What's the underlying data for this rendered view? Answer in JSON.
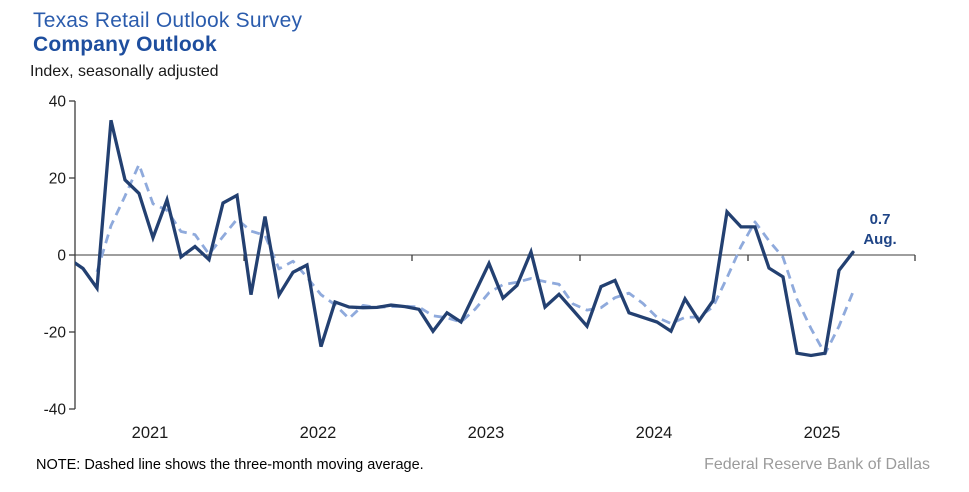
{
  "header": {
    "survey_title": "Texas Retail Outlook Survey",
    "chart_title": "Company Outlook",
    "subtitle": "Index,  seasonally adjusted"
  },
  "annotation": {
    "value": "0.7",
    "month": "Aug."
  },
  "note": "NOTE: Dashed line shows the three-month moving average.",
  "footer": "Federal Reserve Bank of Dallas",
  "colors": {
    "survey_title": "#2B5CAD",
    "chart_title": "#1E4E9E",
    "solid_line": "#234071",
    "dashed_line": "#8FAADC",
    "annotation": "#1E4486",
    "axis": "#3d3d3d",
    "tick_label": "#1a1a1a"
  },
  "chart_data": {
    "type": "line",
    "title": "Company Outlook",
    "subtitle": "Texas Retail Outlook Survey",
    "ylabel": "Index, seasonally adjusted",
    "ylim": [
      -40,
      40
    ],
    "y_ticks": [
      40,
      20,
      0,
      -20,
      -40
    ],
    "x_tick_years": [
      "2021",
      "2022",
      "2023",
      "2024",
      "2025"
    ],
    "grid": false,
    "zero_line": true,
    "legend_position": "none (dashed line identified in footnote)",
    "last_point_label": "0.7 Aug.",
    "x": [
      "2020-12",
      "2021-01",
      "2021-02",
      "2021-03",
      "2021-04",
      "2021-05",
      "2021-06",
      "2021-07",
      "2021-08",
      "2021-09",
      "2021-10",
      "2021-11",
      "2021-12",
      "2022-01",
      "2022-02",
      "2022-03",
      "2022-04",
      "2022-05",
      "2022-06",
      "2022-07",
      "2022-08",
      "2022-09",
      "2022-10",
      "2022-11",
      "2022-12",
      "2023-01",
      "2023-02",
      "2023-03",
      "2023-04",
      "2023-05",
      "2023-06",
      "2023-07",
      "2023-08",
      "2023-09",
      "2023-10",
      "2023-11",
      "2023-12",
      "2024-01",
      "2024-02",
      "2024-03",
      "2024-04",
      "2024-05",
      "2024-06",
      "2024-07",
      "2024-08",
      "2024-09",
      "2024-10",
      "2024-11",
      "2024-12",
      "2025-01",
      "2025-02",
      "2025-03",
      "2025-04",
      "2025-05",
      "2025-06",
      "2025-07",
      "2025-08"
    ],
    "series": [
      {
        "name": "Company outlook index",
        "style": "solid",
        "values": [
          -1.0,
          -3.5,
          -8.6,
          35.0,
          19.5,
          16.0,
          4.5,
          14.3,
          -0.5,
          2.2,
          -1.2,
          13.5,
          15.5,
          -10.3,
          10.0,
          -10.4,
          -4.5,
          -2.6,
          -23.8,
          -12.2,
          -13.5,
          -13.7,
          -13.6,
          -13.0,
          -13.4,
          -14.1,
          -19.8,
          -15.0,
          -17.4,
          -9.8,
          -2.2,
          -11.2,
          -7.9,
          0.8,
          -13.5,
          -10.2,
          -14.3,
          -18.5,
          -8.2,
          -6.6,
          -15.0,
          -16.2,
          -17.4,
          -19.8,
          -11.4,
          -17.1,
          -11.9,
          11.2,
          7.3,
          7.3,
          -3.4,
          -5.7,
          -25.5,
          -26.1,
          -25.5,
          -4.0,
          0.7
        ]
      },
      {
        "name": "Three-month moving average",
        "style": "dashed",
        "values": [
          null,
          null,
          -4.4,
          7.6,
          15.3,
          23.5,
          13.3,
          11.6,
          6.1,
          5.3,
          0.2,
          4.8,
          9.3,
          6.2,
          5.1,
          -3.6,
          -1.6,
          -5.8,
          -10.3,
          -12.9,
          -16.5,
          -13.1,
          -13.6,
          -13.4,
          -13.3,
          -13.5,
          -15.8,
          -16.3,
          -17.4,
          -14.1,
          -9.8,
          -7.7,
          -7.1,
          -6.1,
          -6.9,
          -7.6,
          -12.7,
          -14.3,
          -13.7,
          -11.1,
          -9.9,
          -12.6,
          -16.2,
          -17.8,
          -16.2,
          -16.1,
          -13.5,
          -5.9,
          2.2,
          8.6,
          3.7,
          -0.6,
          -11.5,
          -19.1,
          -25.7,
          -18.5,
          -9.6
        ]
      }
    ]
  }
}
